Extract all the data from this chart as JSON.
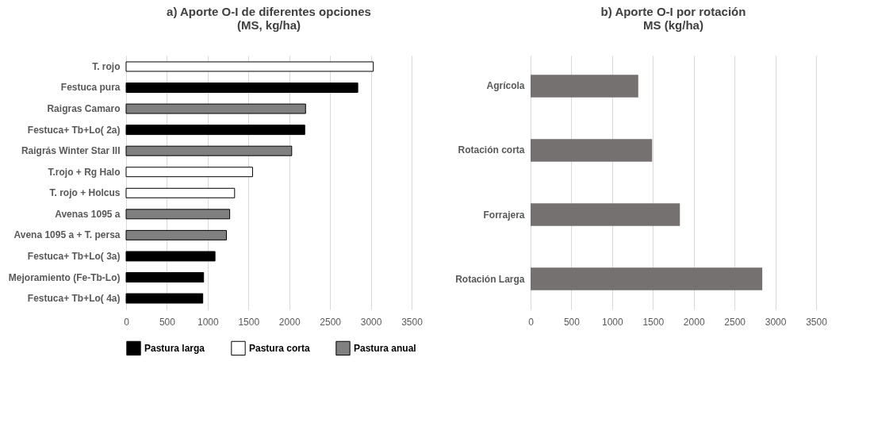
{
  "chart_data": [
    {
      "type": "bar",
      "orientation": "horizontal",
      "title": "a) Aporte O-I de diferentes opciones\n(MS, kg/ha)",
      "categories": [
        "T. rojo",
        "Festuca pura",
        "Raigras Camaro",
        "Festuca+ Tb+Lo( 2a)",
        "Raigrás Winter Star III",
        "T.rojo + Rg Halo",
        "T. rojo + Holcus",
        "Avenas 1095 a",
        "Avena 1095 a + T. persa",
        "Festuca+ Tb+Lo( 3a)",
        "Mejoramiento (Fe-Tb-Lo)",
        "Festuca+ Tb+Lo( 4a)"
      ],
      "series": [
        {
          "name": "Pastura larga",
          "color": "#000000",
          "values": [
            null,
            2840,
            null,
            2190,
            null,
            null,
            null,
            null,
            null,
            1090,
            950,
            940
          ]
        },
        {
          "name": "Pastura corta",
          "color": "#ffffff",
          "values": [
            3030,
            null,
            null,
            null,
            null,
            1550,
            1330,
            null,
            null,
            null,
            null,
            null
          ]
        },
        {
          "name": "Pastura anual",
          "color": "#808080",
          "values": [
            null,
            null,
            2200,
            null,
            2030,
            null,
            null,
            1270,
            1230,
            null,
            null,
            null
          ]
        }
      ],
      "xlim": [
        0,
        3500
      ],
      "xticks": [
        0,
        500,
        1000,
        1500,
        2000,
        2500,
        3000,
        3500
      ],
      "grid": "x",
      "legend": "bottom"
    },
    {
      "type": "bar",
      "orientation": "horizontal",
      "title": "b) Aporte O-I por rotación\nMS (kg/ha)",
      "categories": [
        "Agrícola",
        "Rotación corta",
        "Forrajera",
        "Rotación Larga"
      ],
      "values": [
        1320,
        1490,
        1830,
        2840
      ],
      "color": "#767171",
      "xlim": [
        0,
        3500
      ],
      "xticks": [
        0,
        500,
        1000,
        1500,
        2000,
        2500,
        3000,
        3500
      ],
      "grid": "x"
    }
  ]
}
